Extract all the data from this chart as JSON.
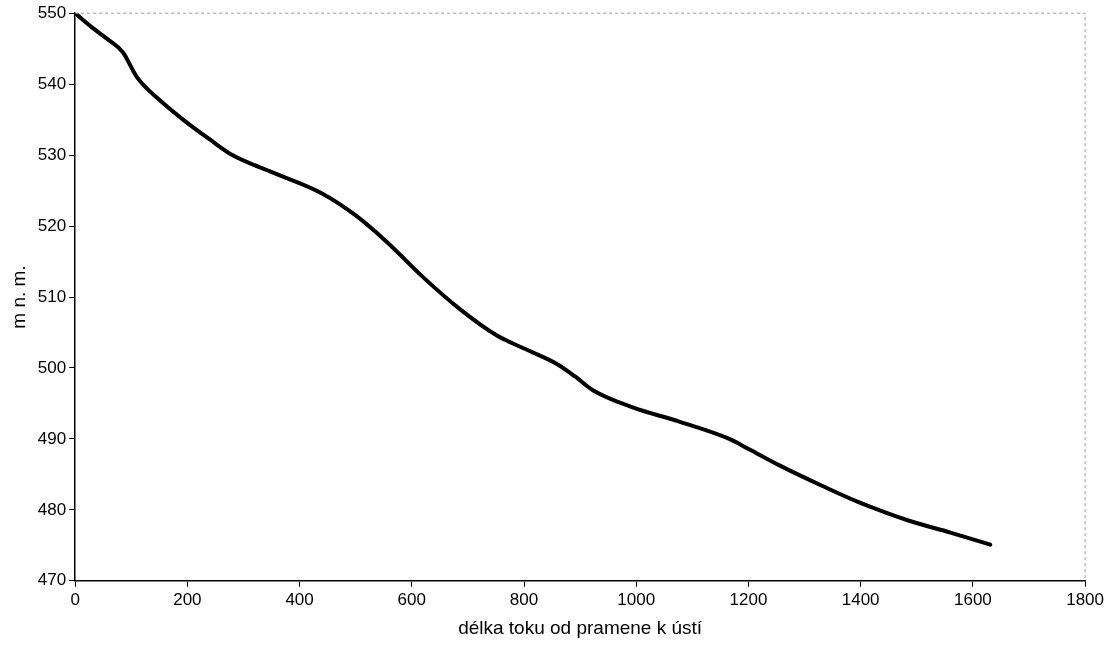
{
  "chart_data": {
    "type": "line",
    "xlabel": "délka toku od pramene k ústí",
    "ylabel": "m n. m.",
    "xlim": [
      0,
      1800
    ],
    "xticks": [
      0,
      200,
      400,
      600,
      800,
      1000,
      1200,
      1400,
      1600,
      1800
    ],
    "ylim": [
      470,
      550
    ],
    "yticks": [
      470,
      480,
      490,
      500,
      510,
      520,
      530,
      540,
      550
    ],
    "grid": false,
    "legend": false,
    "marker": "none",
    "line_style": "solid",
    "series": [
      {
        "color": "#000000",
        "x": [
          0,
          30,
          60,
          85,
          110,
          150,
          194,
          240,
          280,
          354,
          440,
          500,
          555,
          620,
          684,
          751,
          807,
          860,
          891,
          922,
          995,
          1074,
          1166,
          1202,
          1257,
          1331,
          1393,
          1485,
          1560,
          1631
        ],
        "values": [
          550,
          548,
          546.2,
          544.5,
          541,
          537.8,
          534.9,
          532.2,
          530,
          527.5,
          524.6,
          521.5,
          517.8,
          512.8,
          508.4,
          504.6,
          502.5,
          500.5,
          498.8,
          496.9,
          494.4,
          492.5,
          490,
          488.5,
          486.2,
          483.4,
          481.2,
          478.5,
          476.8,
          475.1
        ]
      }
    ]
  }
}
